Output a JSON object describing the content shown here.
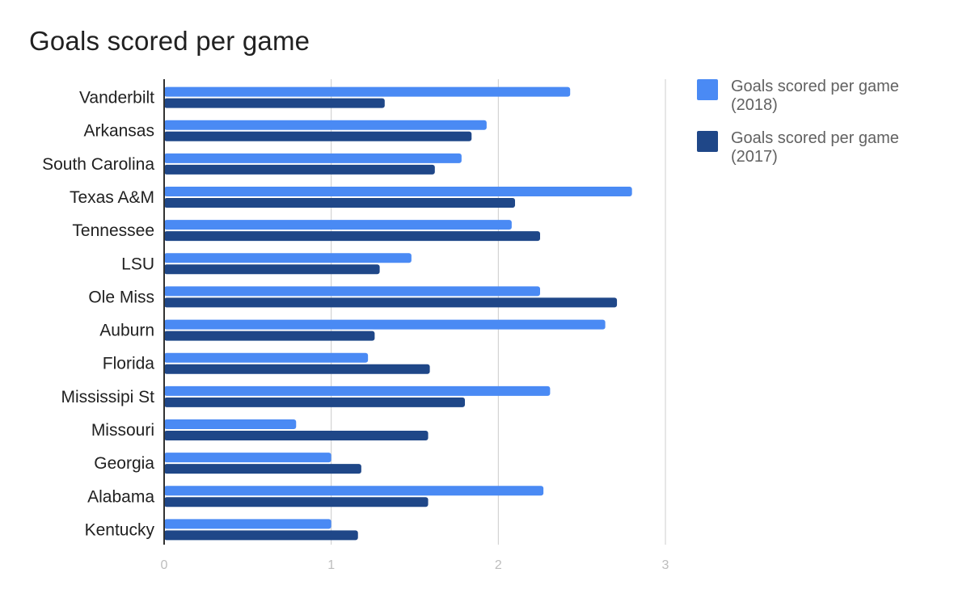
{
  "chart_data": {
    "type": "bar",
    "orientation": "horizontal",
    "title": "Goals scored per game",
    "categories": [
      "Vanderbilt",
      "Arkansas",
      "South Carolina",
      "Texas A&M",
      "Tennessee",
      "LSU",
      "Ole Miss",
      "Auburn",
      "Florida",
      "Mississipi St",
      "Missouri",
      "Georgia",
      "Alabama",
      "Kentucky"
    ],
    "series": [
      {
        "name": "Goals scored per game (2018)",
        "color": "#4a8af4",
        "values": [
          2.43,
          1.93,
          1.78,
          2.8,
          2.08,
          1.48,
          2.25,
          2.64,
          1.22,
          2.31,
          0.79,
          1.0,
          2.27,
          1.0
        ]
      },
      {
        "name": "Goals scored per game (2017)",
        "color": "#1f4788",
        "values": [
          1.32,
          1.84,
          1.62,
          2.1,
          2.25,
          1.29,
          2.71,
          1.26,
          1.59,
          1.8,
          1.58,
          1.18,
          1.58,
          1.16
        ]
      }
    ],
    "xlim": [
      0,
      3
    ],
    "xticks": [
      "0",
      "1",
      "2",
      "3"
    ],
    "xlabel": "",
    "ylabel": "",
    "grid": true,
    "legend_position": "right"
  }
}
